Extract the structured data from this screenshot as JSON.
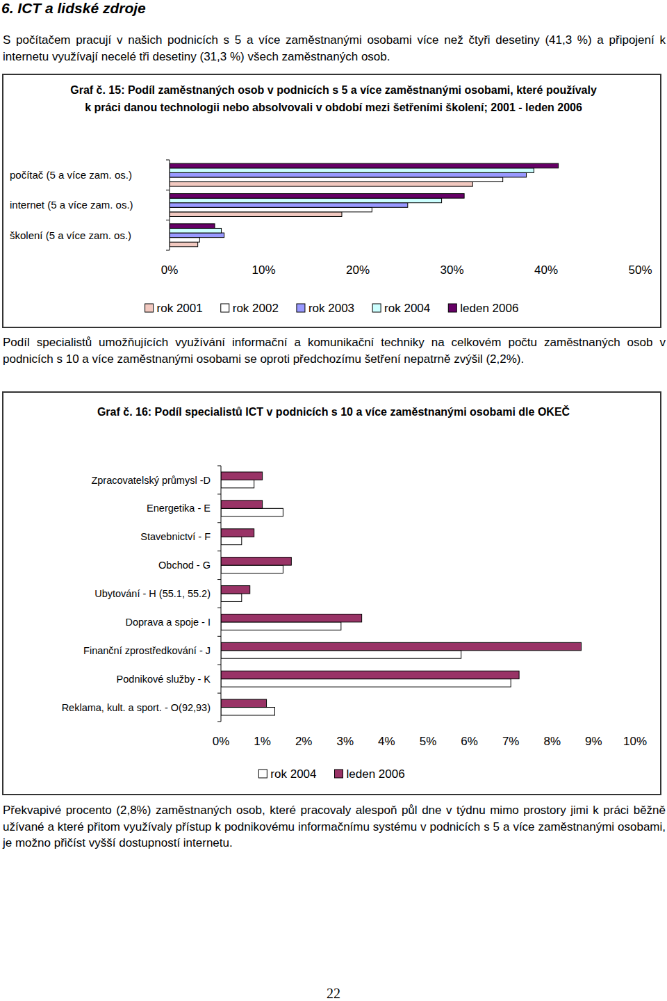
{
  "heading": "6. ICT a lidské zdroje",
  "paragraphs": [
    "S počítačem pracují v našich podnicích s 5 a více zaměstnanými osobami více než čtyři desetiny (41,3 %) a připojení k internetu využívají necelé tři desetiny (31,3 %) všech zaměstnaných osob.",
    "Podíl specialistů umožňujících využívání informační a komunikační techniky na celkovém počtu zaměstnaných osob v podnicích s 10 a více zaměstnanými osobami se oproti předchozímu šetření nepatrně zvýšil (2,2%).",
    "Překvapivé procento (2,8%) zaměstnaných osob, které pracovaly alespoň půl dne v týdnu mimo prostory jimi k práci běžně užívané a které přitom využívaly přístup k podnikovému informačnímu systému v podnicích s 5 a více zaměstnanými osobami, je možno přičíst vyšší dostupností internetu."
  ],
  "page_number": "22",
  "chart_data": [
    {
      "type": "bar",
      "orientation": "horizontal",
      "title": "Graf č. 15: Podíl zaměstnaných osob v podnicích s 5 a více zaměstnanými osobami, které používaly k práci danou technologii nebo absolvovali v období mezi šetřeními školení; 2001 - leden 2006",
      "categories": [
        "počítač (5 a více zam. os.)",
        "internet (5 a více zam. os.)",
        "školení (5 a více zam. os.)"
      ],
      "series": [
        {
          "name": "rok 2001",
          "color": "#f2c9c0",
          "values": [
            32.2,
            18.3,
            3.0
          ]
        },
        {
          "name": "rok 2002",
          "color": "#ffffff",
          "values": [
            35.4,
            21.5,
            3.2
          ]
        },
        {
          "name": "rok 2003",
          "color": "#9999ff",
          "values": [
            37.9,
            25.3,
            5.8
          ]
        },
        {
          "name": "rok 2004",
          "color": "#ccffff",
          "values": [
            38.7,
            28.9,
            5.5
          ]
        },
        {
          "name": "leden 2006",
          "color": "#660066",
          "values": [
            41.3,
            31.3,
            4.8
          ]
        }
      ],
      "xlim": [
        0,
        50
      ],
      "xticks": [
        {
          "value": 0,
          "label": "0%"
        },
        {
          "value": 10,
          "label": "10%"
        },
        {
          "value": 20,
          "label": "20%"
        },
        {
          "value": 30,
          "label": "30%"
        },
        {
          "value": 40,
          "label": "40%"
        },
        {
          "value": 50,
          "label": "50%"
        }
      ],
      "grid": false,
      "legend": "bottom"
    },
    {
      "type": "bar",
      "orientation": "horizontal",
      "title": "Graf č. 16: Podíl specialistů ICT v podnicích s 10 a více zaměstnanými osobami dle OKEČ",
      "categories": [
        "Zpracovatelský průmysl -D",
        "Energetika - E",
        "Stavebnictví - F",
        "Obchod - G",
        "Ubytování - H (55.1, 55.2)",
        "Doprava a spoje - I",
        "Finanční zprostředkování - J",
        "Podnikové služby - K",
        "Reklama, kult. a sport. - O(92,93)"
      ],
      "series": [
        {
          "name": "rok 2004",
          "color": "#ffffff",
          "values": [
            0.8,
            1.5,
            0.5,
            1.5,
            0.5,
            2.9,
            5.8,
            7.0,
            1.3
          ]
        },
        {
          "name": "leden 2006",
          "color": "#993366",
          "values": [
            1.0,
            1.0,
            0.8,
            1.7,
            0.7,
            3.4,
            8.7,
            7.2,
            1.1
          ]
        }
      ],
      "xlim": [
        0,
        10
      ],
      "xticks": [
        {
          "value": 0,
          "label": "0%"
        },
        {
          "value": 1,
          "label": "1%"
        },
        {
          "value": 2,
          "label": "2%"
        },
        {
          "value": 3,
          "label": "3%"
        },
        {
          "value": 4,
          "label": "4%"
        },
        {
          "value": 5,
          "label": "5%"
        },
        {
          "value": 6,
          "label": "6%"
        },
        {
          "value": 7,
          "label": "7%"
        },
        {
          "value": 8,
          "label": "8%"
        },
        {
          "value": 9,
          "label": "9%"
        },
        {
          "value": 10,
          "label": "10%"
        }
      ],
      "grid": false,
      "legend": "bottom"
    }
  ]
}
